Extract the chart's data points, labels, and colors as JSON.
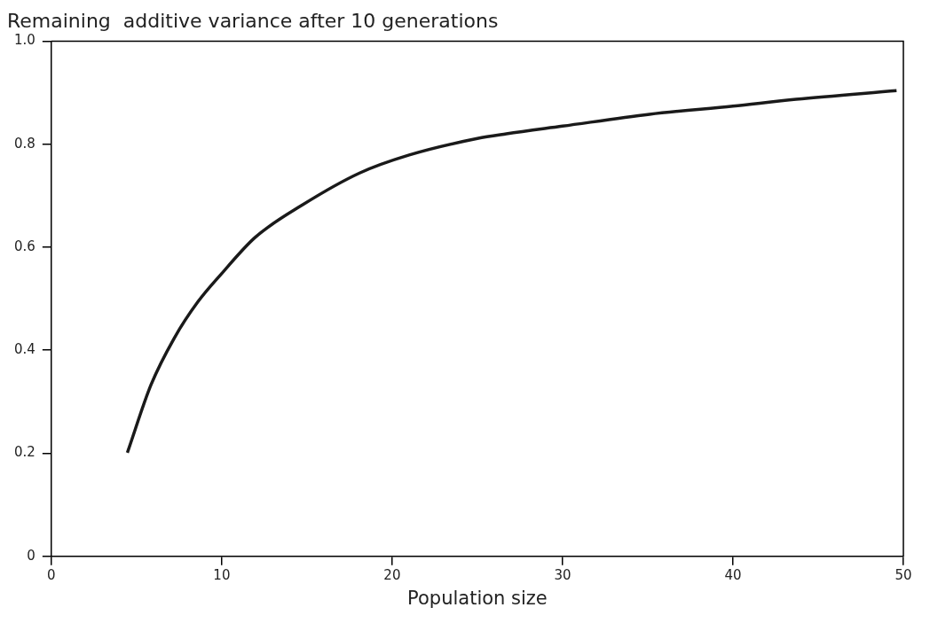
{
  "chart_data": {
    "type": "line",
    "title": "Remaining  additive variance after 10 generations",
    "xlabel": "Population size",
    "series": [
      {
        "color": "#1a1a1a",
        "x": [
          4.46,
          5.85,
          7.22,
          8.6,
          10,
          11.96,
          14.73,
          18.09,
          21,
          25,
          26.7,
          30,
          35.1,
          40,
          43.7,
          49.6
        ],
        "values": [
          0.201,
          0.333,
          0.424,
          0.494,
          0.549,
          0.619,
          0.682,
          0.744,
          0.779,
          0.811,
          0.82,
          0.835,
          0.858,
          0.874,
          0.887,
          0.904
        ]
      }
    ],
    "xlim": [
      0,
      50
    ],
    "xticks": [
      0,
      10,
      20,
      30,
      40,
      50
    ],
    "ylim": [
      0,
      1
    ],
    "yticks": [
      0,
      0.2,
      0.4,
      0.6,
      0.8,
      {
        "value": 1,
        "label": "1.0"
      }
    ],
    "grid": false,
    "legend": false,
    "marker": "none",
    "line_style": "solid"
  }
}
